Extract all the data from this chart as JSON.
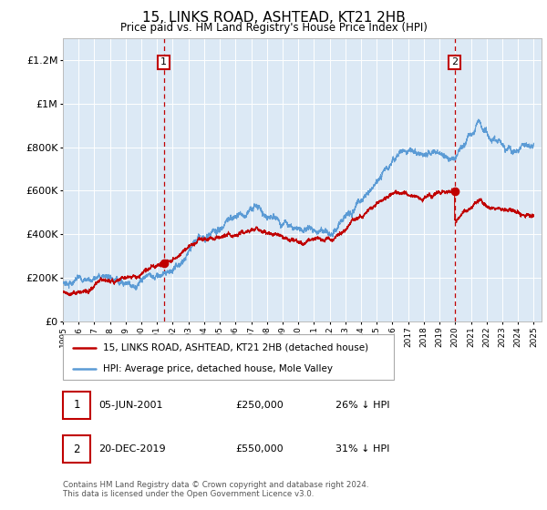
{
  "title": "15, LINKS ROAD, ASHTEAD, KT21 2HB",
  "subtitle": "Price paid vs. HM Land Registry's House Price Index (HPI)",
  "hpi_label": "HPI: Average price, detached house, Mole Valley",
  "price_label": "15, LINKS ROAD, ASHTEAD, KT21 2HB (detached house)",
  "annotation1": {
    "label": "1",
    "date": "05-JUN-2001",
    "price": "£250,000",
    "hpi_diff": "26% ↓ HPI"
  },
  "annotation2": {
    "label": "2",
    "date": "20-DEC-2019",
    "price": "£550,000",
    "hpi_diff": "31% ↓ HPI"
  },
  "footer": "Contains HM Land Registry data © Crown copyright and database right 2024.\nThis data is licensed under the Open Government Licence v3.0.",
  "hpi_color": "#5b9bd5",
  "price_color": "#c00000",
  "bg_color": "#dce9f5",
  "ylim": [
    0,
    1300000
  ],
  "yticks": [
    0,
    200000,
    400000,
    600000,
    800000,
    1000000,
    1200000
  ],
  "ytick_labels": [
    "£0",
    "£200K",
    "£400K",
    "£600K",
    "£800K",
    "£1M",
    "£1.2M"
  ],
  "sale1_year_float": 2001.42,
  "sale1_price": 250000,
  "sale2_year_float": 2019.96,
  "sale2_price": 550000
}
